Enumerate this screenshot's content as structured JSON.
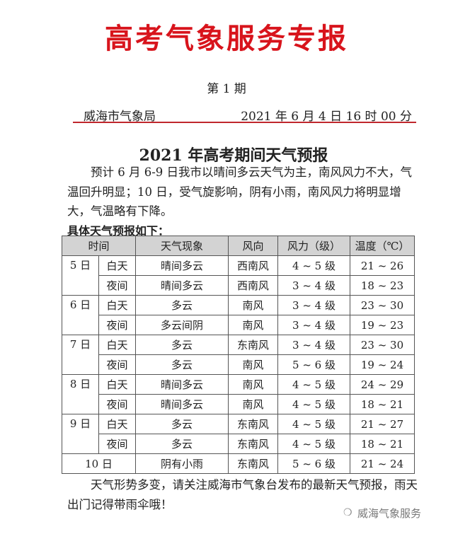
{
  "header": {
    "title": "高考气象服务专报",
    "issue": "第 1 期",
    "bureau": "威海市气象局",
    "date": "2021 年 6 月 4 日 16 时 00 分",
    "accent": "#d8141c"
  },
  "doc": {
    "title": "2021 年高考期间天气预报",
    "intro": "　　预计 6 月 6-9 日我市以晴间多云天气为主，南风风力不大，气温回升明显；10 日，受气旋影响，阴有小雨，南风风力将明显增大，气温略有下降。",
    "subheading": "具体天气预报如下：",
    "closing": "　　天气形势多变，请关注威海市气象台发布的最新天气预报，雨天出门记得带雨伞哦！"
  },
  "table": {
    "headers": [
      "时间",
      "天气现象",
      "风向",
      "风力（级）",
      "温度（℃）"
    ],
    "days": [
      {
        "date": "5 日",
        "rows": [
          [
            "白天",
            "晴间多云",
            "西南风",
            "4 ~ 5 级",
            "21 ~ 26"
          ],
          [
            "夜间",
            "晴间多云",
            "西南风",
            "3 ~ 4 级",
            "18 ~ 23"
          ]
        ]
      },
      {
        "date": "6 日",
        "rows": [
          [
            "白天",
            "多云",
            "南风",
            "3 ~ 4 级",
            "23 ~ 30"
          ],
          [
            "夜间",
            "多云间阴",
            "南风",
            "3 ~ 4 级",
            "19 ~ 23"
          ]
        ]
      },
      {
        "date": "7 日",
        "rows": [
          [
            "白天",
            "多云",
            "东南风",
            "3 ~ 4 级",
            "23 ~ 30"
          ],
          [
            "夜间",
            "多云",
            "南风",
            "5 ~ 6 级",
            "19 ~ 24"
          ]
        ]
      },
      {
        "date": "8 日",
        "rows": [
          [
            "白天",
            "晴间多云",
            "南风",
            "4 ~ 5 级",
            "24 ~ 29"
          ],
          [
            "夜间",
            "晴间多云",
            "南风",
            "4 ~ 5 级",
            "18 ~ 21"
          ]
        ]
      },
      {
        "date": "9 日",
        "rows": [
          [
            "白天",
            "多云",
            "东南风",
            "4 ~ 5 级",
            "21 ~ 27"
          ],
          [
            "夜间",
            "多云",
            "东南风",
            "4 ~ 5 级",
            "18 ~ 21"
          ]
        ]
      }
    ],
    "last": {
      "date": "10 日",
      "weather": "阴有小雨",
      "wind_dir": "东南风",
      "wind_force": "5 ~ 6 级",
      "temp": "21 ~ 24"
    }
  },
  "watermark": {
    "text": "威海气象服务",
    "icon": "wechat-icon"
  }
}
